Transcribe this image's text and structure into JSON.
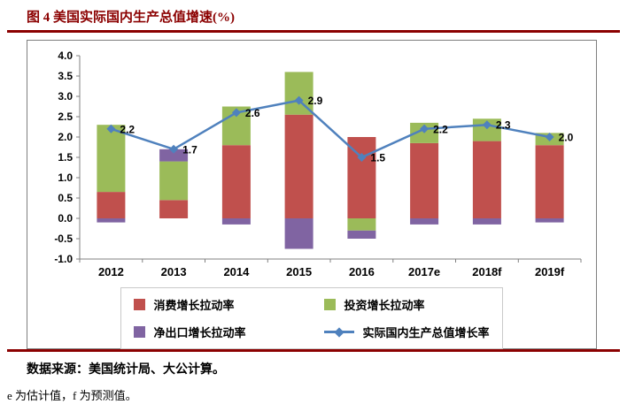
{
  "page": {
    "title": "图 4 美国实际国内生产总值增速(%)",
    "source": "数据来源：美国统计局、大公计算。",
    "note": "e 为估计值，f 为预测值。"
  },
  "colors": {
    "title_accent": "#8B0000",
    "rule": "#8B0000",
    "chart_border": "#7F7F7F",
    "axis": "#808080",
    "consumption_bar": "#C0504D",
    "investment_bar": "#9BBB59",
    "net_exports_bar": "#8064A2",
    "gdp_line": "#4F81BD"
  },
  "chart_data": {
    "type": "bar",
    "subtype": "stacked-bars-with-line-overlay",
    "title": "图 4 美国实际国内生产总值增速(%)",
    "categories": [
      "2012",
      "2013",
      "2014",
      "2015",
      "2016",
      "2017e",
      "2018f",
      "2019f"
    ],
    "series": [
      {
        "name": "消费增长拉动率",
        "kind": "bar",
        "color": "#C0504D",
        "values": [
          0.65,
          0.45,
          1.8,
          2.55,
          2.0,
          1.85,
          1.9,
          1.8
        ]
      },
      {
        "name": "投资增长拉动率",
        "kind": "bar",
        "color": "#9BBB59",
        "values": [
          1.65,
          0.95,
          0.95,
          1.05,
          -0.3,
          0.5,
          0.55,
          0.3
        ]
      },
      {
        "name": "净出口增长拉动率",
        "kind": "bar",
        "color": "#8064A2",
        "values": [
          -0.1,
          0.3,
          -0.15,
          -0.75,
          -0.2,
          -0.15,
          -0.15,
          -0.1
        ]
      },
      {
        "name": "实际国内生产总值增长率",
        "kind": "line",
        "color": "#4F81BD",
        "values": [
          2.2,
          1.7,
          2.6,
          2.9,
          1.5,
          2.2,
          2.3,
          2.0
        ],
        "data_labels": [
          "2.2",
          "1.7",
          "2.6",
          "2.9",
          "1.5",
          "2.2",
          "2.3",
          "2.0"
        ]
      }
    ],
    "ylim": [
      -1.0,
      4.0
    ],
    "ytick_step": 0.5,
    "xlabel": "",
    "ylabel": "",
    "grid": false,
    "legend_position": "bottom"
  }
}
